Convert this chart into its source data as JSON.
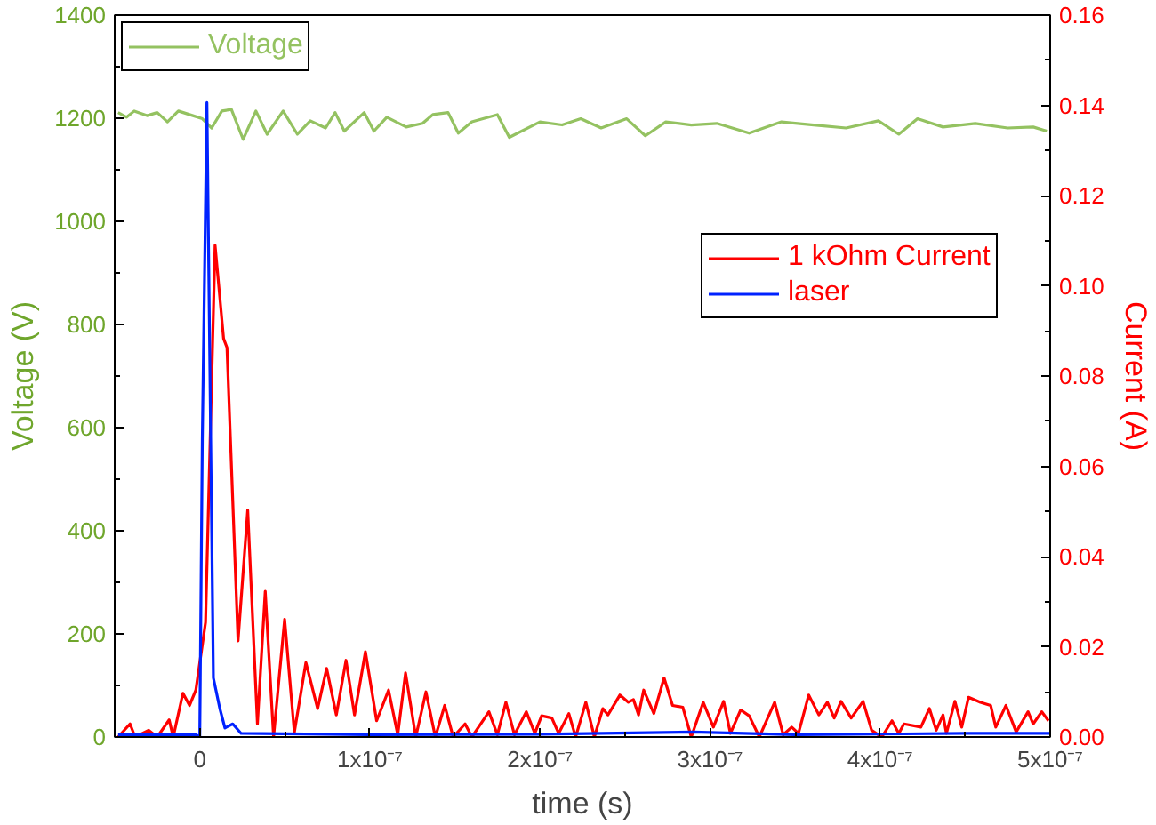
{
  "chart_data": {
    "type": "line",
    "xlabel": "time (s)",
    "ylabel": "Voltage (V)",
    "y2label": "Current (A)",
    "xlim": [
      -5e-08,
      5e-07
    ],
    "xticks": [
      {
        "value": -5e-08,
        "label": null
      },
      0,
      {
        "value": 5e-08,
        "label": null
      },
      {
        "value": 1e-07,
        "label": "1x10⁻⁷"
      },
      {
        "value": 1.5e-07,
        "label": null
      },
      {
        "value": 2e-07,
        "label": "2x10⁻⁷"
      },
      {
        "value": 2.5e-07,
        "label": null
      },
      {
        "value": 3e-07,
        "label": "3x10⁻⁷"
      },
      {
        "value": 3.5e-07,
        "label": null
      },
      {
        "value": 4e-07,
        "label": "4x10⁻⁷"
      },
      {
        "value": 4.5e-07,
        "label": null
      },
      {
        "value": 5e-07,
        "label": "5x10⁻⁷"
      }
    ],
    "ylim": [
      0,
      1400
    ],
    "yticks": [
      0,
      {
        "value": 100,
        "label": null
      },
      200,
      {
        "value": 300,
        "label": null
      },
      400,
      {
        "value": 500,
        "label": null
      },
      600,
      {
        "value": 700,
        "label": null
      },
      800,
      {
        "value": 900,
        "label": null
      },
      1000,
      {
        "value": 1100,
        "label": null
      },
      1200,
      {
        "value": 1300,
        "label": null
      },
      1400
    ],
    "y2lim": [
      0,
      0.16
    ],
    "y2ticks": [
      {
        "value": 0,
        "label": "0.00"
      },
      {
        "value": 0.01,
        "label": null
      },
      {
        "value": 0.02,
        "label": "0.02"
      },
      {
        "value": 0.03,
        "label": null
      },
      {
        "value": 0.04,
        "label": "0.04"
      },
      {
        "value": 0.05,
        "label": null
      },
      {
        "value": 0.06,
        "label": "0.06"
      },
      {
        "value": 0.07,
        "label": null
      },
      {
        "value": 0.08,
        "label": "0.08"
      },
      {
        "value": 0.09,
        "label": null
      },
      {
        "value": 0.1,
        "label": "0.10"
      },
      {
        "value": 0.11,
        "label": null
      },
      {
        "value": 0.12,
        "label": "0.12"
      },
      {
        "value": 0.13,
        "label": null
      },
      {
        "value": 0.14,
        "label": "0.14"
      },
      {
        "value": 0.15,
        "label": null
      },
      {
        "value": 0.16,
        "label": "0.16"
      }
    ],
    "grid": false,
    "legend": "top left",
    "line_style": "solid",
    "marker": "none",
    "series": [
      {
        "name": "Voltage",
        "color": "#94c261",
        "x": [
          -4.8e-08,
          -4.3e-08,
          -3.85e-08,
          -3.1e-08,
          -2.5e-08,
          -1.9e-08,
          -1.26e-08,
          -4e-09,
          1.5e-09,
          7e-09,
          1.3e-08,
          1.86e-08,
          2.55e-08,
          3.3e-08,
          3.96e-08,
          4.9e-08,
          5.74e-08,
          6.5e-08,
          7.4e-08,
          7.96e-08,
          8.5e-08,
          9.67e-08,
          1.024e-07,
          1.1e-07,
          1.214e-07,
          1.31e-07,
          1.37e-07,
          1.46e-07,
          1.52e-07,
          1.6e-07,
          1.75e-07,
          1.82e-07,
          2e-07,
          2.13e-07,
          2.24e-07,
          2.36e-07,
          2.51e-07,
          2.62e-07,
          2.74e-07,
          2.89e-07,
          3.04e-07,
          3.23e-07,
          3.42e-07,
          3.61e-07,
          3.8e-07,
          3.99e-07,
          4.11e-07,
          4.22e-07,
          4.37e-07,
          4.56e-07,
          4.75e-07,
          4.9e-07,
          4.98e-07
        ],
        "values": [
          1211,
          1202,
          1214,
          1205,
          1211,
          1193,
          1214,
          1205,
          1199,
          1181,
          1214,
          1217,
          1159,
          1214,
          1169,
          1214,
          1169,
          1195,
          1181,
          1211,
          1175,
          1211,
          1175,
          1202,
          1183,
          1190,
          1207,
          1211,
          1171,
          1193,
          1207,
          1163,
          1193,
          1187,
          1199,
          1181,
          1199,
          1166,
          1193,
          1187,
          1190,
          1171,
          1193,
          1187,
          1181,
          1195,
          1169,
          1199,
          1183,
          1190,
          1181,
          1183,
          1175
        ]
      },
      {
        "name": "1 kOhm Current",
        "color": "#ff0000",
        "axis": "y2",
        "x": [
          -4.8e-08,
          -4.1e-08,
          -3.8e-08,
          -3e-08,
          -2.5e-08,
          -1.8e-08,
          -1.56e-08,
          -9.9e-09,
          -6e-09,
          -2.3e-09,
          3.4e-09,
          9e-09,
          1.4e-08,
          1.6e-08,
          2.25e-08,
          2.82e-08,
          3.39e-08,
          3.85e-08,
          4.34e-08,
          4.99e-08,
          5.56e-08,
          6.24e-08,
          6.93e-08,
          7.46e-08,
          8.03e-08,
          8.6e-08,
          9.1e-08,
          9.74e-08,
          1.04e-07,
          1.11e-07,
          1.164e-07,
          1.21e-07,
          1.27e-07,
          1.33e-07,
          1.385e-07,
          1.44e-07,
          1.49e-07,
          1.56e-07,
          1.6e-07,
          1.7e-07,
          1.75e-07,
          1.8e-07,
          1.85e-07,
          1.92e-07,
          1.97e-07,
          2.01e-07,
          2.07e-07,
          2.11e-07,
          2.17e-07,
          2.21e-07,
          2.27e-07,
          2.32e-07,
          2.37e-07,
          2.4e-07,
          2.47e-07,
          2.52e-07,
          2.55e-07,
          2.58e-07,
          2.61e-07,
          2.67e-07,
          2.73e-07,
          2.78e-07,
          2.84e-07,
          2.89e-07,
          2.96e-07,
          3.02e-07,
          3.08e-07,
          3.12e-07,
          3.18e-07,
          3.23e-07,
          3.29e-07,
          3.38e-07,
          3.43e-07,
          3.48e-07,
          3.52e-07,
          3.58e-07,
          3.64e-07,
          3.69e-07,
          3.73e-07,
          3.77e-07,
          3.83e-07,
          3.9e-07,
          3.95e-07,
          4.01e-07,
          4.07e-07,
          4.11e-07,
          4.14e-07,
          4.24e-07,
          4.29e-07,
          4.33e-07,
          4.37e-07,
          4.39e-07,
          4.44e-07,
          4.48e-07,
          4.52e-07,
          4.59e-07,
          4.65e-07,
          4.68e-07,
          4.74e-07,
          4.8e-07,
          4.87e-07,
          4.9e-07,
          4.95e-07,
          4.99e-07
        ],
        "values": [
          0,
          0.0029,
          0,
          0.0015,
          0,
          0.0038,
          0,
          0.0097,
          0.007,
          0.0104,
          0.0254,
          0.109,
          0.0883,
          0.0863,
          0.0213,
          0.0503,
          0.0029,
          0.0323,
          0,
          0.0261,
          0.001,
          0.0165,
          0.0063,
          0.0152,
          0.0049,
          0.017,
          0.0049,
          0.0189,
          0.0036,
          0.0104,
          0.0005,
          0.0142,
          0,
          0.01,
          0,
          0.007,
          0,
          0.0029,
          0,
          0.0056,
          0.0005,
          0.0077,
          0.0005,
          0.0056,
          0.0008,
          0.0047,
          0.0042,
          0.0008,
          0.0052,
          0,
          0.0077,
          0,
          0.0063,
          0.0049,
          0.0093,
          0.0077,
          0.0083,
          0.0049,
          0.0104,
          0.0052,
          0.0131,
          0.007,
          0.0066,
          0,
          0.0077,
          0.0022,
          0.0079,
          0.0008,
          0.006,
          0.0047,
          0,
          0.0077,
          0.0005,
          0.0022,
          0.0008,
          0.0093,
          0.0049,
          0.0077,
          0.0042,
          0.0079,
          0.0042,
          0.0079,
          0.0015,
          0,
          0.0036,
          0.0008,
          0.0029,
          0.0022,
          0.0063,
          0.0015,
          0.0049,
          0.0008,
          0.0079,
          0.0022,
          0.0088,
          0.0077,
          0.007,
          0.0022,
          0.007,
          0.0011,
          0.0056,
          0.0029,
          0.0056,
          0.0036
        ]
      },
      {
        "name": "laser",
        "color": "#0022ff",
        "axis": "y2",
        "x": [
          -4.8e-08,
          -2e-09,
          0,
          1.5e-09,
          4.2e-09,
          8e-09,
          1.18e-08,
          1.48e-08,
          1.94e-08,
          2.43e-08,
          1e-07,
          2e-07,
          2.9e-07,
          3.5e-07,
          4.5e-07,
          5e-07
        ],
        "values": [
          0.0005,
          0.0005,
          0,
          0.066,
          0.1406,
          0.0131,
          0.0063,
          0.002,
          0.0029,
          0.0008,
          0.0005,
          0.0006,
          0.0011,
          0.0005,
          0.0008,
          0.0008
        ]
      }
    ]
  }
}
